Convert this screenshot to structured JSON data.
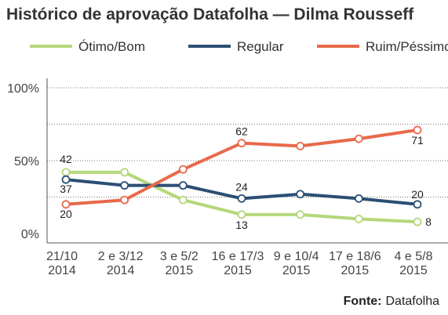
{
  "chart_data": {
    "type": "line",
    "title": "Histórico de aprovação Datafolha — Dilma Rousseff",
    "categories": [
      [
        "21/10",
        "2014"
      ],
      [
        "2 e 3/12",
        "2014"
      ],
      [
        "3 e 5/2",
        "2015"
      ],
      [
        "16 e 17/3",
        "2015"
      ],
      [
        "9 e 10/4",
        "2015"
      ],
      [
        "17 e 18/6",
        "2015"
      ],
      [
        "4 e 5/8",
        "2015"
      ]
    ],
    "ytick_labels": [
      "0%",
      "50%",
      "100%"
    ],
    "ylim": [
      0,
      100
    ],
    "legend_position": "top",
    "grid": true,
    "series": [
      {
        "name": "Ótimo/Bom",
        "color": "#b5d77a",
        "x": [
          0,
          1,
          2,
          3,
          4,
          5,
          6
        ],
        "values": [
          42,
          42,
          23,
          13,
          13,
          10,
          8
        ],
        "labels": [
          "42",
          "",
          "",
          "13",
          "",
          "",
          "8"
        ]
      },
      {
        "name": "Regular",
        "color": "#2b4f73",
        "x": [
          0,
          1,
          2,
          3,
          4,
          5,
          6
        ],
        "values": [
          37,
          33,
          33,
          24,
          27,
          24,
          20
        ],
        "labels": [
          "37",
          "",
          "",
          "24",
          "",
          "",
          "20"
        ]
      },
      {
        "name": "Ruim/Péssimo",
        "color": "#e8694a",
        "x": [
          0,
          1,
          2,
          3,
          4,
          5,
          6
        ],
        "values": [
          20,
          23,
          44,
          62,
          60,
          65,
          71
        ],
        "labels": [
          "20",
          "",
          "",
          "62",
          "",
          "",
          "71"
        ]
      }
    ],
    "source_label": "Fonte:",
    "source": "Datafolha"
  }
}
